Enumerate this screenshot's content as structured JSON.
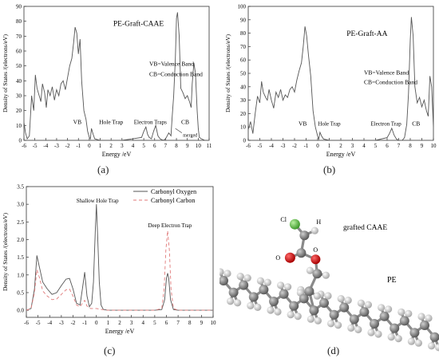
{
  "panels": [
    {
      "label": "(a)",
      "chart_data": {
        "type": "line",
        "title": "PE-Graft-CAAE",
        "xlabel": "Energy /eV",
        "ylabel": "Density of States /(electrons/eV)",
        "xlim": [
          -6,
          11
        ],
        "ylim": [
          0,
          90
        ],
        "xticks": [
          -6,
          -5,
          -4,
          -3,
          -2,
          -1,
          0,
          1,
          2,
          3,
          4,
          5,
          6,
          7,
          8,
          9,
          10,
          11
        ],
        "yticks": [
          0,
          10,
          20,
          30,
          40,
          50,
          60,
          70,
          80,
          90
        ],
        "grid": false,
        "series": [
          {
            "color": "#555555",
            "x": [
              -6,
              -5.85,
              -5.7,
              -5.5,
              -5.3,
              -5.1,
              -4.95,
              -4.8,
              -4.6,
              -4.45,
              -4.3,
              -4.1,
              -3.95,
              -3.8,
              -3.6,
              -3.4,
              -3.2,
              -3.0,
              -2.8,
              -2.6,
              -2.4,
              -2.2,
              -2.0,
              -1.8,
              -1.6,
              -1.45,
              -1.3,
              -1.15,
              -1.0,
              -0.85,
              -0.7,
              -0.5,
              -0.3,
              -0.15,
              0,
              0.1,
              0.2,
              0.35,
              0.5,
              1,
              2,
              3,
              4,
              4.8,
              5.0,
              5.2,
              5.35,
              5.5,
              5.7,
              5.9,
              6.1,
              6.3,
              6.5,
              6.8,
              7.0,
              7.3,
              7.5,
              7.6,
              7.75,
              7.9,
              8.0,
              8.1,
              8.25,
              8.4,
              8.6,
              8.8,
              9.0,
              9.2,
              9.35,
              9.45,
              9.6,
              9.75,
              9.9,
              10.0,
              10.1,
              10.3,
              10.6,
              11
            ],
            "y": [
              12,
              5,
              1,
              3,
              30,
              20,
              44,
              35,
              30,
              26,
              38,
              32,
              22,
              34,
              30,
              36,
              27,
              34,
              30,
              38,
              40,
              34,
              42,
              50,
              55,
              65,
              76,
              72,
              58,
              68,
              40,
              20,
              14,
              6,
              2,
              1,
              8,
              4,
              1,
              0,
              0,
              0,
              1,
              2,
              6,
              9,
              4,
              2,
              1,
              6,
              10,
              3,
              1,
              0,
              1,
              5,
              3,
              15,
              30,
              55,
              82,
              86,
              70,
              35,
              32,
              28,
              30,
              26,
              22,
              38,
              52,
              45,
              20,
              8,
              2,
              1,
              0,
              0
            ]
          }
        ],
        "annotations": [
          "VB=Valence Band",
          "CB=Conduction Band",
          "VB",
          "Hole Trap",
          "Electron Traps",
          "CB",
          "merged"
        ]
      }
    },
    {
      "label": "(b)",
      "chart_data": {
        "type": "line",
        "title": "PE-Graft-AA",
        "xlabel": "Energy /eV",
        "ylabel": "Density of States /(electrons/eV)",
        "xlim": [
          -6,
          10
        ],
        "ylim": [
          0,
          100
        ],
        "xticks": [
          -6,
          -5,
          -4,
          -3,
          -2,
          -1,
          0,
          1,
          2,
          3,
          4,
          5,
          6,
          7,
          8,
          9,
          10
        ],
        "yticks": [
          0,
          10,
          20,
          30,
          40,
          50,
          60,
          70,
          80,
          90,
          100
        ],
        "grid": false,
        "series": [
          {
            "color": "#555555",
            "x": [
              -6,
              -5.8,
              -5.6,
              -5.4,
              -5.2,
              -5.0,
              -4.85,
              -4.7,
              -4.5,
              -4.35,
              -4.2,
              -4.0,
              -3.8,
              -3.6,
              -3.4,
              -3.2,
              -3.0,
              -2.8,
              -2.6,
              -2.4,
              -2.2,
              -2.0,
              -1.8,
              -1.6,
              -1.4,
              -1.25,
              -1.1,
              -0.95,
              -0.8,
              -0.6,
              -0.4,
              -0.2,
              0,
              0.1,
              0.2,
              0.35,
              0.5,
              1,
              2,
              3,
              4,
              5,
              6,
              6.2,
              6.4,
              6.6,
              6.8,
              7.0,
              7.3,
              7.5,
              7.7,
              7.85,
              8.0,
              8.1,
              8.25,
              8.4,
              8.6,
              8.8,
              9.0,
              9.2,
              9.4,
              9.55,
              9.7,
              9.85,
              10
            ],
            "y": [
              8,
              14,
              5,
              20,
              33,
              28,
              44,
              36,
              32,
              30,
              38,
              30,
              24,
              36,
              32,
              38,
              30,
              34,
              32,
              38,
              40,
              36,
              45,
              52,
              58,
              70,
              85,
              78,
              64,
              48,
              22,
              10,
              3,
              1,
              6,
              3,
              1,
              0,
              0,
              0,
              0,
              0,
              2,
              5,
              9,
              4,
              1,
              0,
              0,
              2,
              12,
              35,
              75,
              92,
              78,
              40,
              28,
              32,
              25,
              30,
              22,
              18,
              48,
              40,
              10
            ]
          }
        ],
        "annotations": [
          "VB=Valence Band",
          "CB=Conduction Band",
          "VB",
          "Hole Trap",
          "Electron Trap",
          "CB"
        ]
      }
    },
    {
      "label": "(c)",
      "chart_data": {
        "type": "line",
        "xlabel": "Energy /eV",
        "ylabel": "Density of States /(electrons/eV)",
        "xlim": [
          -6,
          10
        ],
        "ylim": [
          -0.2,
          3.5
        ],
        "xticks": [
          -6,
          -5,
          -4,
          -3,
          -2,
          -1,
          0,
          1,
          2,
          3,
          4,
          5,
          6,
          7,
          8,
          9,
          10
        ],
        "yticks": [
          0.0,
          0.5,
          1.0,
          1.5,
          2.0,
          2.5,
          3.0,
          3.5
        ],
        "grid": false,
        "legend": "top-right",
        "series": [
          {
            "name": "Carbonyl Oxygen",
            "color": "#555555",
            "dash": "",
            "x": [
              -6,
              -5.6,
              -5.3,
              -5.1,
              -4.9,
              -4.6,
              -4.2,
              -3.8,
              -3.4,
              -3.0,
              -2.6,
              -2.3,
              -2.0,
              -1.7,
              -1.4,
              -1.2,
              -1.0,
              -0.8,
              -0.6,
              -0.4,
              -0.25,
              -0.1,
              0,
              0.1,
              0.25,
              0.4,
              0.6,
              1,
              2,
              3,
              4,
              5,
              5.6,
              5.85,
              6.0,
              6.1,
              6.2,
              6.35,
              6.6,
              7,
              8,
              9,
              10
            ],
            "y": [
              0,
              0.05,
              0.6,
              1.55,
              1.25,
              0.8,
              0.6,
              0.45,
              0.5,
              0.7,
              0.88,
              0.9,
              0.6,
              0.2,
              0.15,
              0.6,
              1.08,
              0.4,
              0.1,
              0.2,
              0.8,
              2.2,
              3.0,
              2.2,
              0.8,
              0.15,
              0.02,
              0,
              0,
              0,
              0,
              0,
              0.02,
              0.3,
              0.9,
              1.05,
              0.9,
              0.3,
              0.02,
              0,
              0,
              0,
              0
            ]
          },
          {
            "name": "Carbonyl Carbon",
            "color": "#e07a7a",
            "dash": "4,3",
            "x": [
              -6,
              -5.6,
              -5.3,
              -5.1,
              -4.9,
              -4.6,
              -4.2,
              -3.8,
              -3.4,
              -3.0,
              -2.6,
              -2.3,
              -2.0,
              -1.7,
              -1.4,
              -1.2,
              -1.0,
              -0.8,
              -0.5,
              0,
              0.5,
              1,
              2,
              3,
              4,
              5,
              5.6,
              5.8,
              5.95,
              6.1,
              6.25,
              6.4,
              6.6,
              7,
              8,
              9,
              10
            ],
            "y": [
              0,
              0.05,
              0.5,
              1.15,
              0.95,
              0.55,
              0.4,
              0.3,
              0.32,
              0.45,
              0.58,
              0.6,
              0.4,
              0.15,
              0.1,
              0.2,
              0.28,
              0.12,
              0.05,
              0.05,
              0.02,
              0,
              0,
              0,
              0,
              0,
              0.05,
              0.6,
              1.7,
              2.25,
              1.7,
              0.6,
              0.05,
              0,
              0,
              0,
              0
            ]
          }
        ],
        "annotations": [
          "Shallow Hole Trap",
          "Deep Electron Trap"
        ]
      }
    },
    {
      "label": "(d)",
      "molecule_labels": [
        "Cl",
        "H",
        "O",
        "O",
        "grafted CAAE",
        "PE"
      ]
    }
  ]
}
